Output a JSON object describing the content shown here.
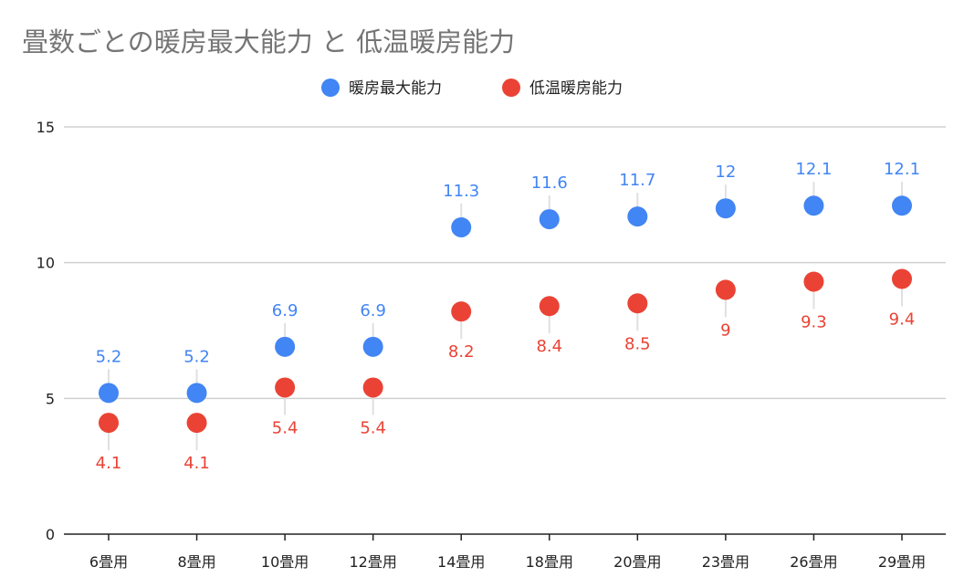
{
  "chart_data": {
    "type": "scatter",
    "title": "畳数ごとの暖房最大能力 と 低温暖房能力",
    "xlabel": "",
    "ylabel": "",
    "ylim": [
      0,
      15
    ],
    "yticks": [
      0,
      5,
      10,
      15
    ],
    "grid": true,
    "legend_position": "top-center",
    "categories": [
      "6畳用",
      "8畳用",
      "10畳用",
      "12畳用",
      "14畳用",
      "18畳用",
      "20畳用",
      "23畳用",
      "26畳用",
      "29畳用"
    ],
    "series": [
      {
        "name": "暖房最大能力",
        "color": "#4285f4",
        "label_position": "above",
        "values": [
          5.2,
          5.2,
          6.9,
          6.9,
          11.3,
          11.6,
          11.7,
          12,
          12.1,
          12.1
        ]
      },
      {
        "name": "低温暖房能力",
        "color": "#ea4335",
        "label_position": "below",
        "values": [
          4.1,
          4.1,
          5.4,
          5.4,
          8.2,
          8.4,
          8.5,
          9,
          9.3,
          9.4
        ]
      }
    ]
  }
}
